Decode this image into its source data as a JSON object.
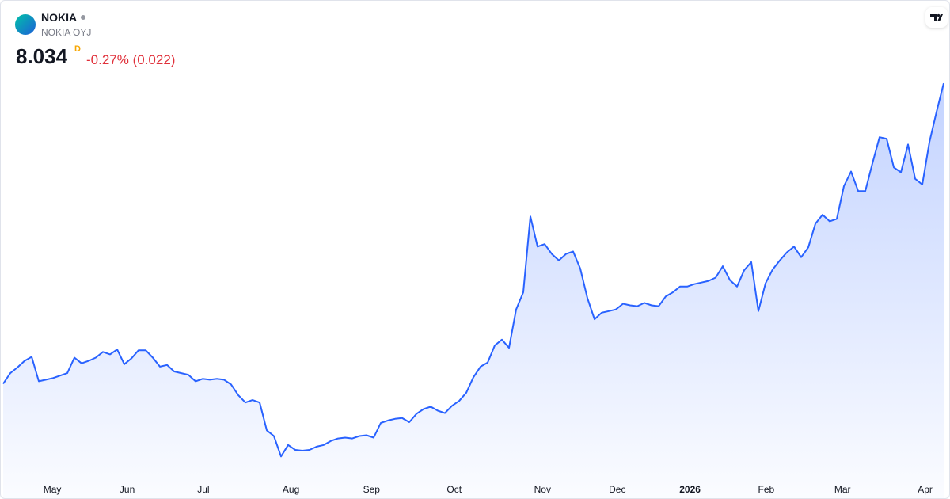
{
  "header": {
    "symbol": "NOKIA",
    "description": "NOKIA OYJ",
    "price": "8.034",
    "flag": "D",
    "change": "-0.27% (0.022)"
  },
  "chart_data": {
    "type": "area",
    "color": "#2962ff",
    "values": [
      4.36,
      4.49,
      4.56,
      4.64,
      4.69,
      4.39,
      4.41,
      4.43,
      4.46,
      4.49,
      4.68,
      4.61,
      4.64,
      4.68,
      4.75,
      4.72,
      4.78,
      4.6,
      4.67,
      4.77,
      4.77,
      4.68,
      4.57,
      4.59,
      4.51,
      4.49,
      4.47,
      4.39,
      4.42,
      4.41,
      4.42,
      4.41,
      4.35,
      4.22,
      4.13,
      4.16,
      4.13,
      3.79,
      3.72,
      3.47,
      3.61,
      3.55,
      3.54,
      3.55,
      3.59,
      3.61,
      3.66,
      3.69,
      3.7,
      3.69,
      3.72,
      3.73,
      3.7,
      3.88,
      3.91,
      3.93,
      3.94,
      3.89,
      3.99,
      4.05,
      4.08,
      4.03,
      4.0,
      4.09,
      4.15,
      4.25,
      4.44,
      4.57,
      4.62,
      4.83,
      4.9,
      4.8,
      5.27,
      5.48,
      6.41,
      6.04,
      6.07,
      5.95,
      5.87,
      5.95,
      5.98,
      5.77,
      5.41,
      5.15,
      5.23,
      5.25,
      5.27,
      5.34,
      5.32,
      5.31,
      5.35,
      5.32,
      5.31,
      5.43,
      5.48,
      5.55,
      5.55,
      5.58,
      5.6,
      5.62,
      5.66,
      5.8,
      5.63,
      5.55,
      5.75,
      5.85,
      5.25,
      5.59,
      5.76,
      5.87,
      5.97,
      6.04,
      5.91,
      6.03,
      6.32,
      6.43,
      6.35,
      6.38,
      6.78,
      6.96,
      6.72,
      6.72,
      7.06,
      7.38,
      7.36,
      7.01,
      6.95,
      7.29,
      6.87,
      6.8,
      7.32,
      7.69,
      8.04
    ],
    "xlim": [
      0,
      132
    ],
    "ylim": [
      3.23,
      9.05
    ],
    "xticks": [
      {
        "value": 6.9,
        "label": "May"
      },
      {
        "value": 17.4,
        "label": "Jun"
      },
      {
        "value": 28.1,
        "label": "Jul"
      },
      {
        "value": 40.4,
        "label": "Aug"
      },
      {
        "value": 51.7,
        "label": "Sep"
      },
      {
        "value": 63.3,
        "label": "Oct"
      },
      {
        "value": 75.7,
        "label": "Nov"
      },
      {
        "value": 86.2,
        "label": "Dec"
      },
      {
        "value": 96.4,
        "label": "2026"
      },
      {
        "value": 107.1,
        "label": "Feb"
      },
      {
        "value": 117.8,
        "label": "Mar"
      },
      {
        "value": 129.4,
        "label": "Apr"
      }
    ]
  }
}
